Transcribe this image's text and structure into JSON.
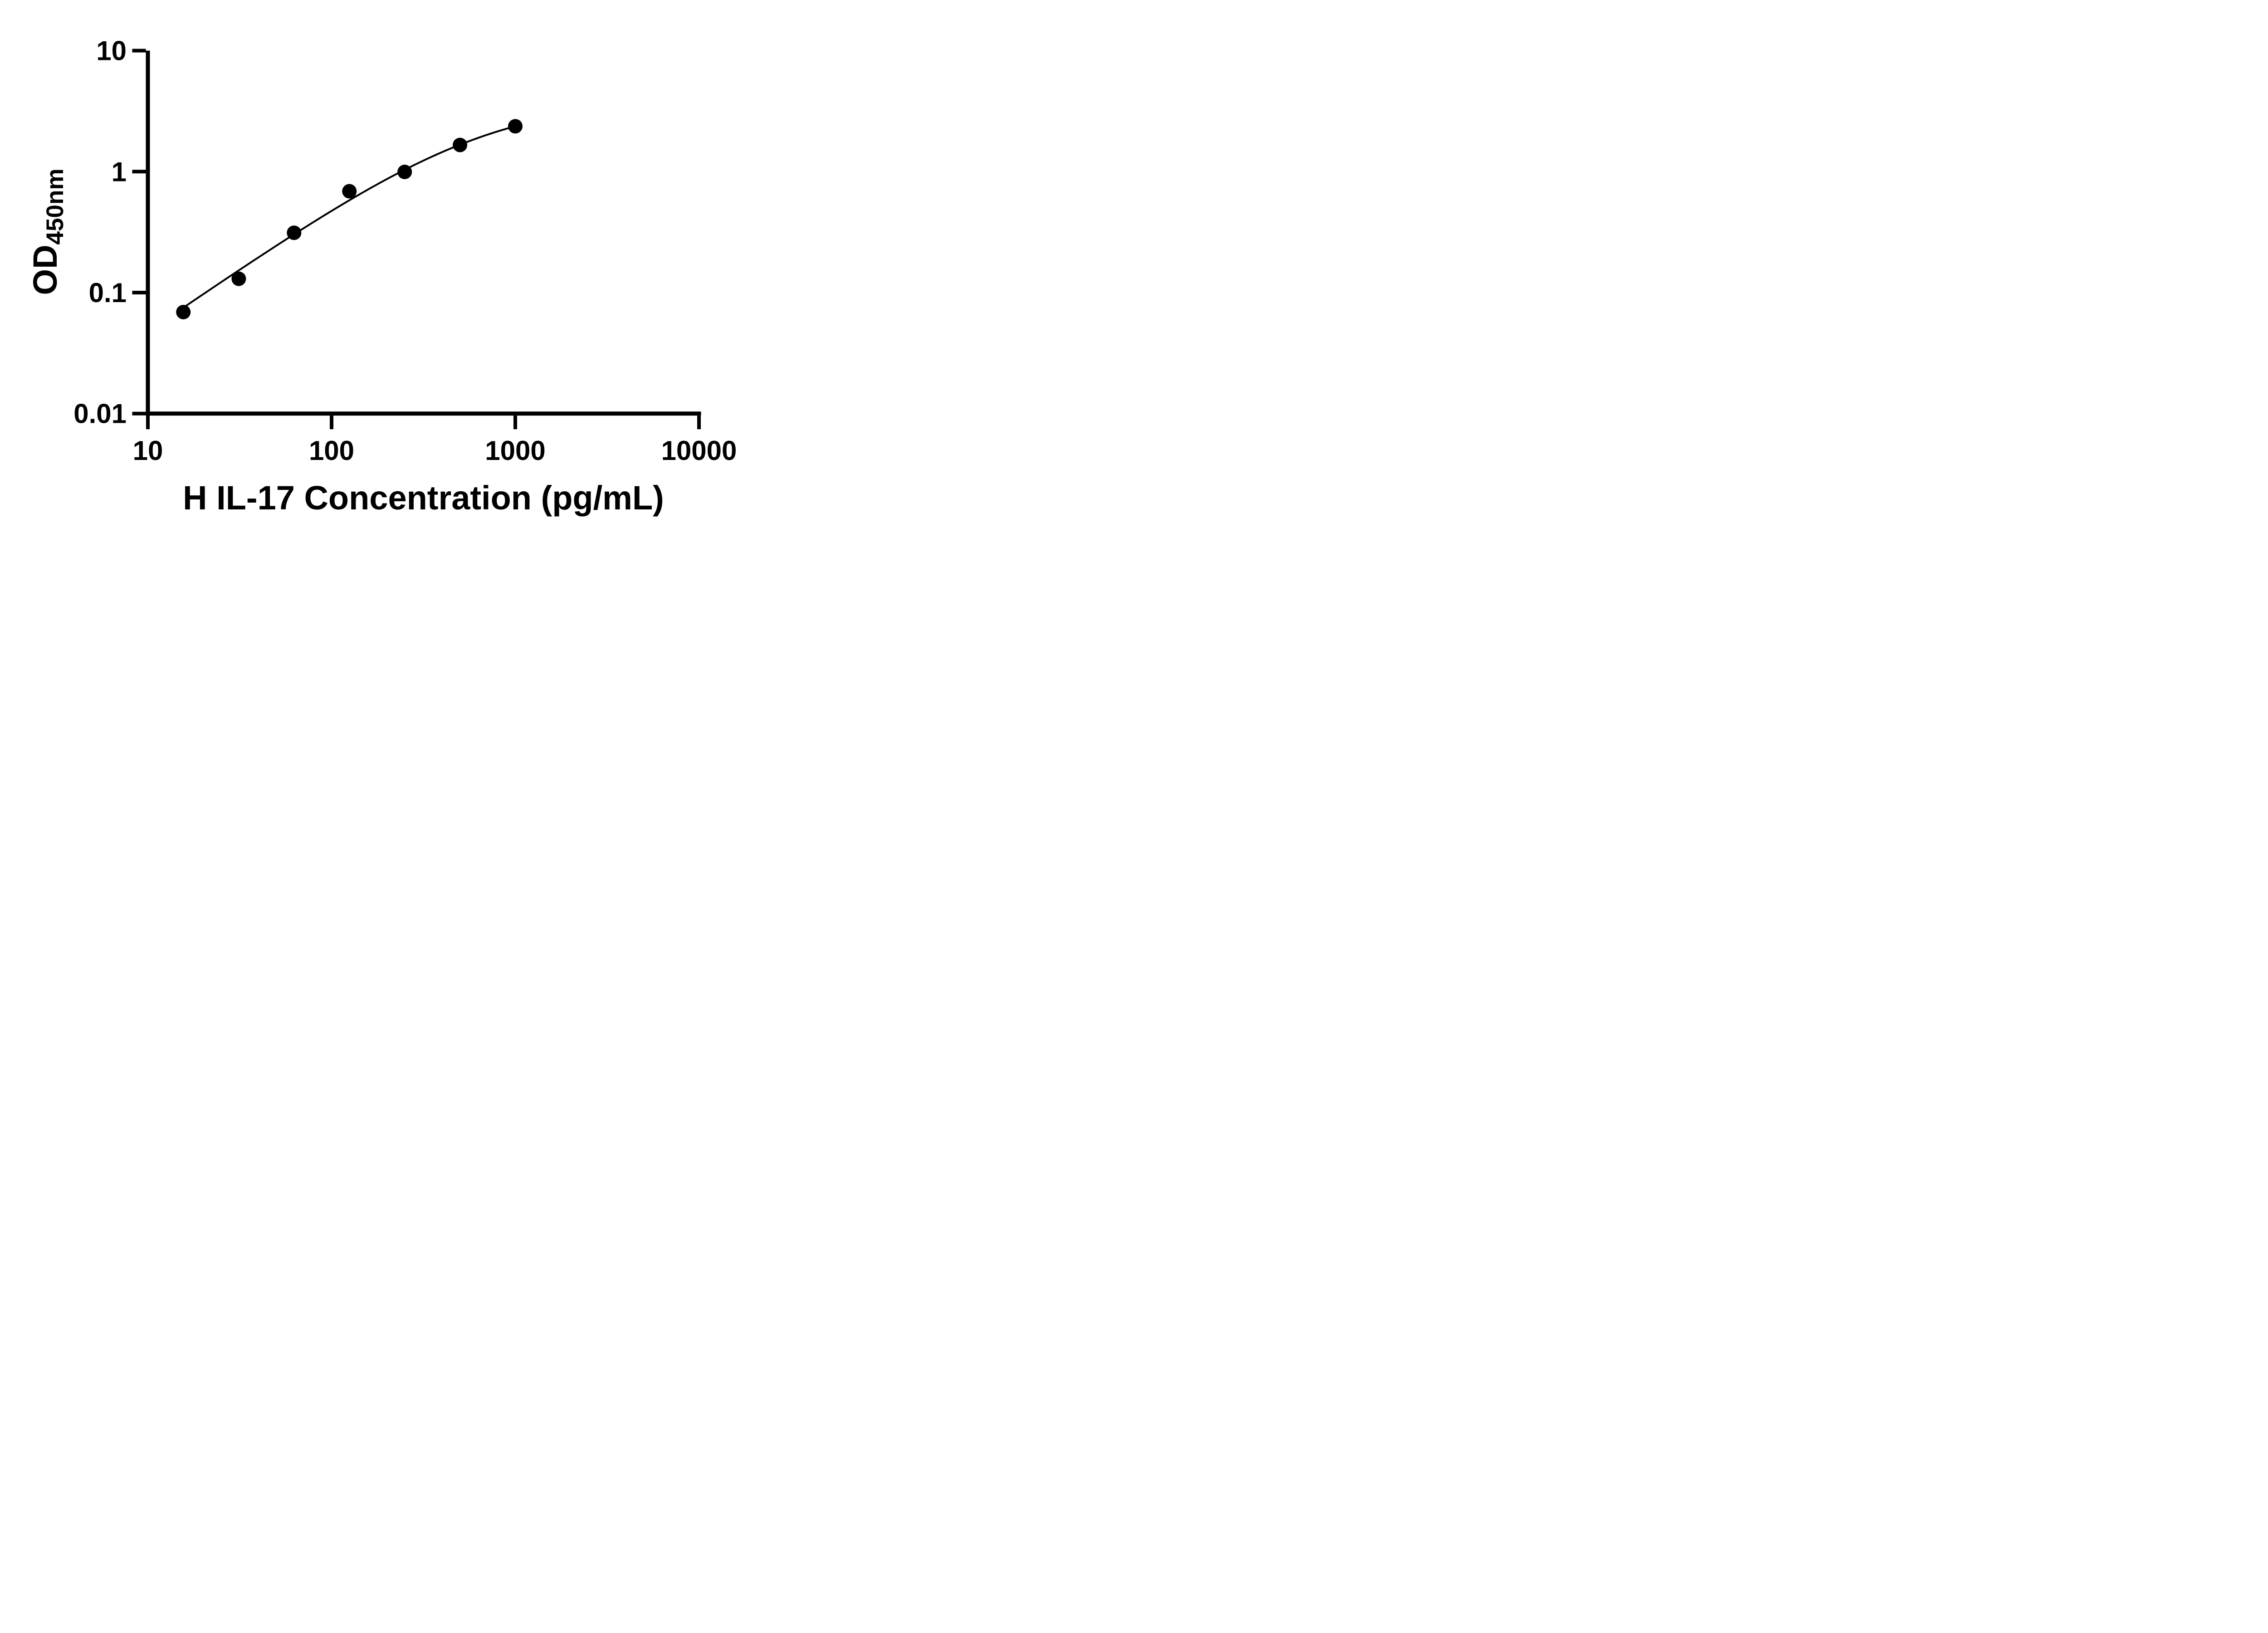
{
  "chart_data": {
    "type": "scatter",
    "title": "",
    "xlabel": "H IL-17 Concentration (pg/mL)",
    "ylabel_main": "OD",
    "ylabel_sub": "450nm",
    "x_scale": "log",
    "y_scale": "log",
    "xlim": [
      10,
      10000
    ],
    "ylim": [
      0.01,
      10
    ],
    "x_ticks": [
      10,
      100,
      1000,
      10000
    ],
    "x_tick_labels": [
      "10",
      "100",
      "1000",
      "10000"
    ],
    "y_ticks": [
      0.01,
      0.1,
      1,
      10
    ],
    "y_tick_labels": [
      "0.01",
      "0.1",
      "1",
      "10"
    ],
    "grid": false,
    "legend": false,
    "series": [
      {
        "name": "standard-curve-points",
        "marker": "circle",
        "color": "#000000",
        "points": [
          {
            "x": 15.6,
            "y": 0.069
          },
          {
            "x": 31.25,
            "y": 0.13
          },
          {
            "x": 62.5,
            "y": 0.312
          },
          {
            "x": 125,
            "y": 0.688
          },
          {
            "x": 250,
            "y": 0.994
          },
          {
            "x": 500,
            "y": 1.66
          },
          {
            "x": 1000,
            "y": 2.37
          }
        ]
      }
    ],
    "trend": {
      "model": "4PL",
      "a": 0,
      "b": 1.05,
      "c": 659,
      "d": 3.9,
      "x_start": 15.6,
      "x_end": 1000
    },
    "colors": {
      "axis": "#000000",
      "marker": "#000000",
      "line": "#000000",
      "background": "#ffffff"
    }
  }
}
